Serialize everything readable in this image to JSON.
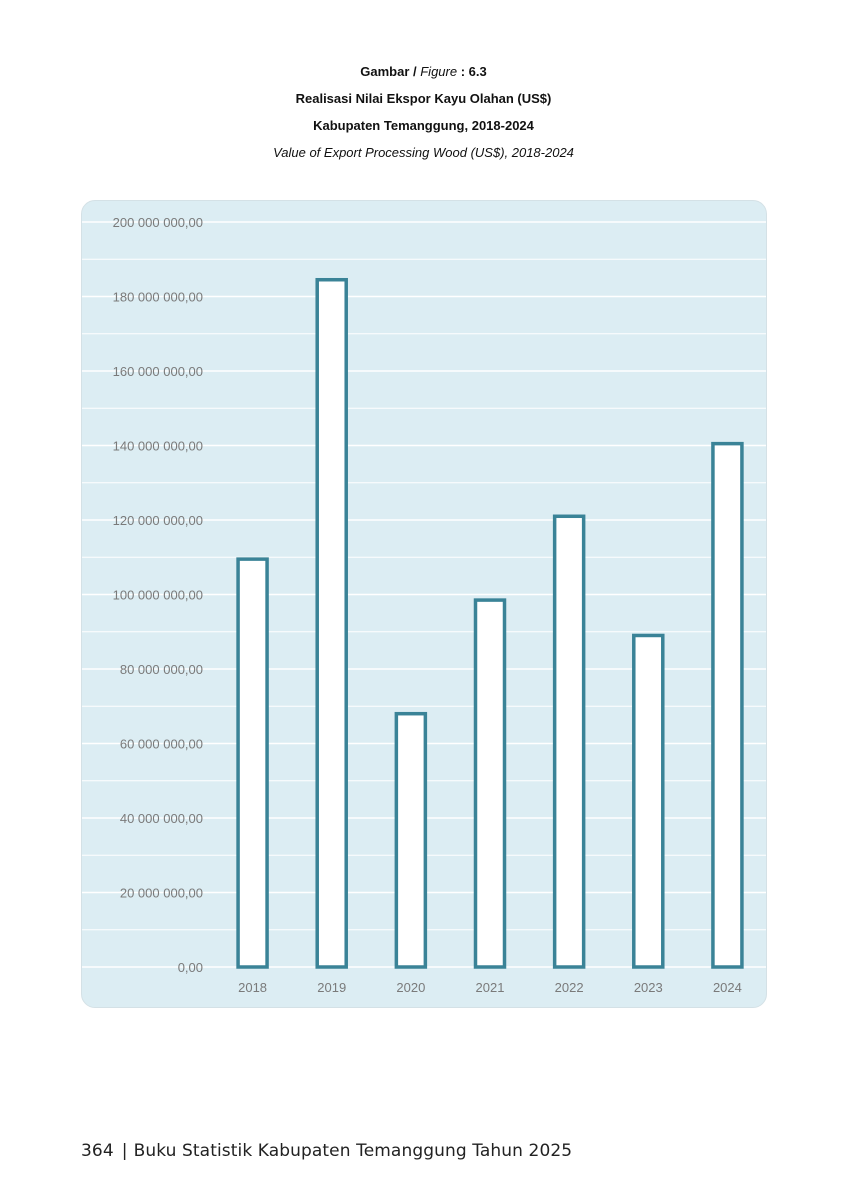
{
  "caption": {
    "figure_prefix": "Gambar /",
    "figure_word": "Figure",
    "figure_number": ": 6.3",
    "title_id": "Realisasi Nilai Ekspor Kayu Olahan (US$)",
    "title_region": "Kabupaten Temanggung, 2018-2024",
    "title_en": "Value of Export Processing Wood (US$), 2018-2024"
  },
  "chart_data": {
    "type": "bar",
    "categories": [
      "2018",
      "2019",
      "2020",
      "2021",
      "2022",
      "2023",
      "2024"
    ],
    "values": [
      109500000,
      184500000,
      68000000,
      98500000,
      121000000,
      89000000,
      140500000
    ],
    "ylim": [
      0,
      200000000
    ],
    "yticks": [
      0,
      20000000,
      40000000,
      60000000,
      80000000,
      100000000,
      120000000,
      140000000,
      160000000,
      180000000,
      200000000
    ],
    "ytick_labels": [
      "0,00",
      "20 000 000,00",
      "40 000 000,00",
      "60 000 000,00",
      "80 000 000,00",
      "100 000 000,00",
      "120 000 000,00",
      "140 000 000,00",
      "160 000 000,00",
      "180 000 000,00",
      "200 000 000,00"
    ],
    "grid": true,
    "colors": {
      "bar_fill": "#ffffff",
      "bar_stroke": "#3a8397",
      "panel_bg": "#dcedf3",
      "grid": "#ffffff",
      "tick_text": "#7a7a7a"
    }
  },
  "footer": {
    "page_number": "364",
    "separator": "|",
    "book_title": "Buku Statistik Kabupaten Temanggung Tahun 2025"
  }
}
